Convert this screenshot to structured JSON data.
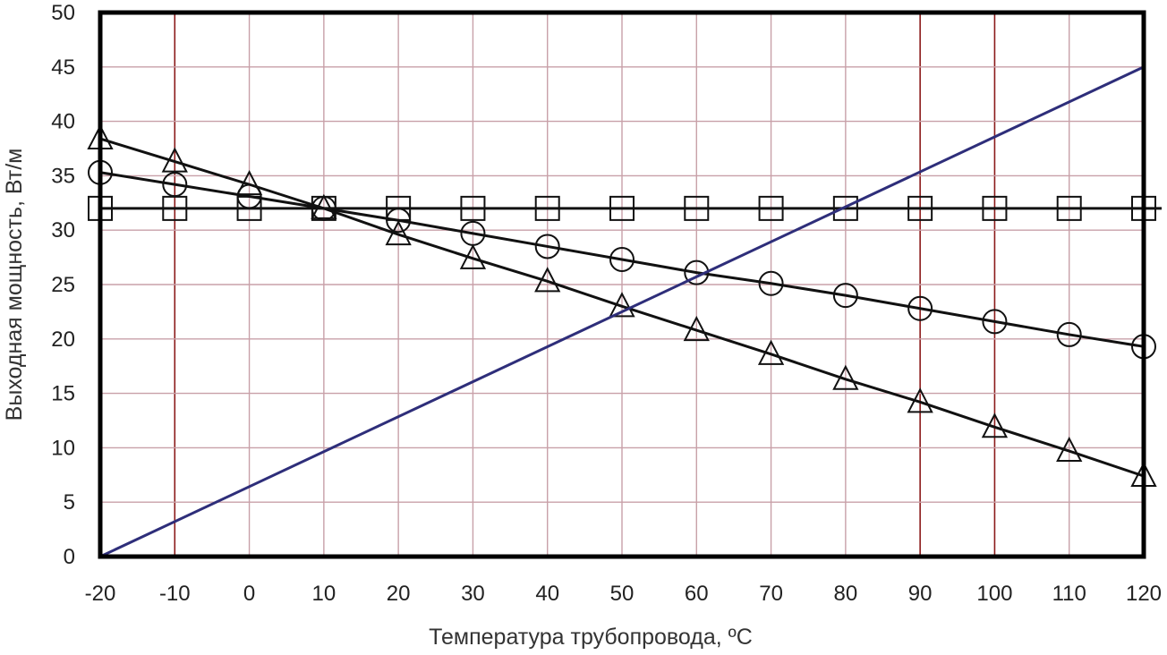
{
  "chart_data": {
    "type": "line",
    "title": "",
    "xlabel": "Температура трубопровода, ºС",
    "ylabel": "Выходная мощность, Вт/м",
    "xlim": [
      -20,
      120
    ],
    "ylim": [
      0,
      50
    ],
    "x_ticks": [
      -20,
      -10,
      0,
      10,
      20,
      30,
      40,
      50,
      60,
      70,
      80,
      90,
      100,
      110,
      120
    ],
    "y_ticks": [
      0,
      5,
      10,
      15,
      20,
      25,
      30,
      35,
      40,
      45,
      50
    ],
    "grid": true,
    "legend": "none",
    "colors": {
      "grid": "#c8a0a8",
      "grid_major": "#8b1a1a",
      "frame": "#000000",
      "series_black": "#111111",
      "series_blue": "#2e2e7a"
    },
    "series": [
      {
        "marker": "square",
        "color": "#111111",
        "x": [
          -20,
          -10,
          0,
          10,
          20,
          30,
          40,
          50,
          60,
          70,
          80,
          90,
          100,
          110,
          120
        ],
        "y": [
          32,
          32,
          32,
          32,
          32,
          32,
          32,
          32,
          32,
          32,
          32,
          32,
          32,
          32,
          32
        ]
      },
      {
        "marker": "circle",
        "color": "#111111",
        "x": [
          -20,
          -10,
          0,
          10,
          20,
          30,
          40,
          50,
          60,
          70,
          80,
          90,
          100,
          110,
          120
        ],
        "y": [
          35.3,
          34.2,
          33.1,
          32,
          30.9,
          29.7,
          28.5,
          27.3,
          26.1,
          25.1,
          24,
          22.8,
          21.6,
          20.4,
          19.3
        ]
      },
      {
        "marker": "triangle",
        "color": "#111111",
        "x": [
          -20,
          -10,
          0,
          10,
          20,
          30,
          40,
          50,
          60,
          70,
          80,
          90,
          100,
          110,
          120
        ],
        "y": [
          38.4,
          36.3,
          34.2,
          32,
          29.6,
          27.4,
          25.3,
          23,
          20.8,
          18.6,
          16.3,
          14.2,
          11.9,
          9.7,
          7.4
        ]
      },
      {
        "marker": "none",
        "color": "#2e2e7a",
        "x": [
          -20,
          120
        ],
        "y": [
          0,
          45
        ]
      }
    ]
  }
}
